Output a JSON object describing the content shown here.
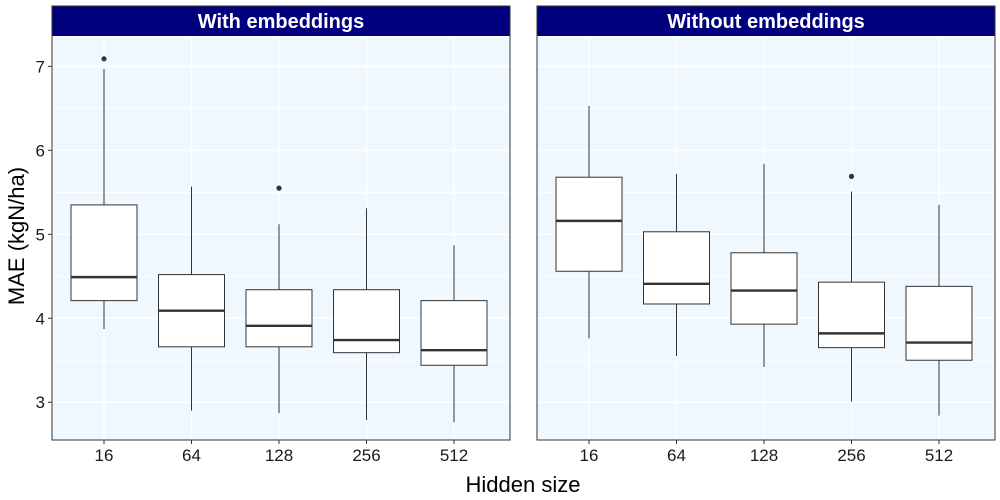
{
  "chart_data": {
    "type": "boxplot",
    "xlabel": "Hidden size",
    "ylabel": "MAE (kgN/ha)",
    "categories": [
      "16",
      "64",
      "128",
      "256",
      "512"
    ],
    "ylim": [
      2.55,
      7.35
    ],
    "yticks": [
      3,
      4,
      5,
      6,
      7
    ],
    "grid": true,
    "colors": {
      "strip_fill": "#00007f",
      "strip_text": "#ffffff",
      "panel_bg": "#f0f8ff",
      "grid": "#ffffff",
      "box_fill": "#ffffff",
      "box_line": "#333333"
    },
    "panels": [
      {
        "title": "With embeddings",
        "boxes": [
          {
            "category": "16",
            "whisker_low": 3.87,
            "q1": 4.21,
            "median": 4.49,
            "q3": 5.35,
            "whisker_high": 6.97,
            "outliers": [
              7.09
            ]
          },
          {
            "category": "64",
            "whisker_low": 2.9,
            "q1": 3.66,
            "median": 4.09,
            "q3": 4.52,
            "whisker_high": 5.57,
            "outliers": []
          },
          {
            "category": "128",
            "whisker_low": 2.87,
            "q1": 3.66,
            "median": 3.91,
            "q3": 4.34,
            "whisker_high": 5.12,
            "outliers": [
              5.55
            ]
          },
          {
            "category": "256",
            "whisker_low": 2.79,
            "q1": 3.59,
            "median": 3.74,
            "q3": 4.34,
            "whisker_high": 5.31,
            "outliers": []
          },
          {
            "category": "512",
            "whisker_low": 2.76,
            "q1": 3.44,
            "median": 3.62,
            "q3": 4.21,
            "whisker_high": 4.87,
            "outliers": []
          }
        ]
      },
      {
        "title": "Without embeddings",
        "boxes": [
          {
            "category": "16",
            "whisker_low": 3.76,
            "q1": 4.56,
            "median": 5.16,
            "q3": 5.68,
            "whisker_high": 6.53,
            "outliers": []
          },
          {
            "category": "64",
            "whisker_low": 3.55,
            "q1": 4.17,
            "median": 4.41,
            "q3": 5.03,
            "whisker_high": 5.72,
            "outliers": []
          },
          {
            "category": "128",
            "whisker_low": 3.42,
            "q1": 3.93,
            "median": 4.33,
            "q3": 4.78,
            "whisker_high": 5.84,
            "outliers": []
          },
          {
            "category": "256",
            "whisker_low": 3.01,
            "q1": 3.65,
            "median": 3.82,
            "q3": 4.43,
            "whisker_high": 5.51,
            "outliers": [
              5.69
            ]
          },
          {
            "category": "512",
            "whisker_low": 2.84,
            "q1": 3.5,
            "median": 3.71,
            "q3": 4.38,
            "whisker_high": 5.35,
            "outliers": []
          }
        ]
      }
    ]
  }
}
